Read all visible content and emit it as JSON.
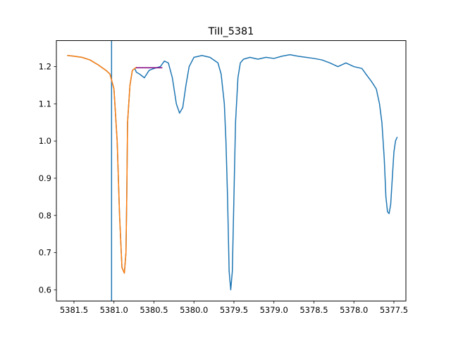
{
  "chart_data": {
    "type": "line",
    "title": "TiII_5381",
    "xlabel": "",
    "ylabel": "",
    "x_inverted": true,
    "xlim": [
      5381.72,
      5377.35
    ],
    "ylim": [
      0.57,
      1.27
    ],
    "x_ticks": [
      {
        "value": 5381.5,
        "label": "5381.5"
      },
      {
        "value": 5381.0,
        "label": "5381.0"
      },
      {
        "value": 5380.5,
        "label": "5380.5"
      },
      {
        "value": 5380.0,
        "label": "5380.0"
      },
      {
        "value": 5379.5,
        "label": "5379.5"
      },
      {
        "value": 5379.0,
        "label": "5379.0"
      },
      {
        "value": 5378.5,
        "label": "5378.5"
      },
      {
        "value": 5378.0,
        "label": "5378.0"
      },
      {
        "value": 5377.5,
        "label": "5377.5"
      }
    ],
    "y_ticks": [
      {
        "value": 0.6,
        "label": "0.6"
      },
      {
        "value": 0.7,
        "label": "0.7"
      },
      {
        "value": 0.8,
        "label": "0.8"
      },
      {
        "value": 0.9,
        "label": "0.9"
      },
      {
        "value": 1.0,
        "label": "1.0"
      },
      {
        "value": 1.1,
        "label": "1.1"
      },
      {
        "value": 1.2,
        "label": "1.2"
      }
    ],
    "grid": false,
    "series": [
      {
        "color": "#1f77b4",
        "x": [
          5381.58,
          5381.5,
          5381.4,
          5381.3,
          5381.2,
          5381.1,
          5381.05,
          5381.0,
          5380.96,
          5380.93,
          5380.9,
          5380.87,
          5380.85,
          5380.84,
          5380.83,
          5380.8,
          5380.77,
          5380.74,
          5380.72,
          5380.68,
          5380.62,
          5380.56,
          5380.5,
          5380.42,
          5380.37,
          5380.32,
          5380.27,
          5380.22,
          5380.18,
          5380.14,
          5380.1,
          5380.06,
          5380.0,
          5379.9,
          5379.8,
          5379.7,
          5379.66,
          5379.62,
          5379.6,
          5379.58,
          5379.56,
          5379.54,
          5379.52,
          5379.5,
          5379.48,
          5379.45,
          5379.42,
          5379.38,
          5379.3,
          5379.2,
          5379.1,
          5379.0,
          5378.9,
          5378.8,
          5378.7,
          5378.6,
          5378.5,
          5378.4,
          5378.3,
          5378.2,
          5378.1,
          5378.0,
          5377.9,
          5377.85,
          5377.78,
          5377.72,
          5377.68,
          5377.65,
          5377.62,
          5377.6,
          5377.58,
          5377.56,
          5377.54,
          5377.52,
          5377.5,
          5377.48,
          5377.46
        ],
        "y": [
          1.23,
          1.228,
          1.225,
          1.218,
          1.205,
          1.19,
          1.18,
          1.14,
          1.0,
          0.8,
          0.66,
          0.645,
          0.7,
          0.85,
          1.05,
          1.15,
          1.19,
          1.195,
          1.185,
          1.18,
          1.17,
          1.19,
          1.195,
          1.2,
          1.215,
          1.21,
          1.17,
          1.1,
          1.075,
          1.09,
          1.15,
          1.2,
          1.225,
          1.23,
          1.225,
          1.21,
          1.18,
          1.1,
          1.0,
          0.85,
          0.65,
          0.6,
          0.65,
          0.85,
          1.05,
          1.17,
          1.21,
          1.22,
          1.225,
          1.22,
          1.225,
          1.222,
          1.228,
          1.232,
          1.228,
          1.225,
          1.222,
          1.218,
          1.21,
          1.2,
          1.21,
          1.2,
          1.195,
          1.18,
          1.16,
          1.14,
          1.1,
          1.05,
          0.95,
          0.85,
          0.81,
          0.805,
          0.83,
          0.9,
          0.97,
          1.0,
          1.01
        ]
      },
      {
        "color": "#ff7f0e",
        "x": [
          5381.58,
          5381.5,
          5381.4,
          5381.3,
          5381.2,
          5381.1,
          5381.05,
          5381.0,
          5380.96,
          5380.93,
          5380.9,
          5380.87,
          5380.85,
          5380.84,
          5380.83,
          5380.8,
          5380.77,
          5380.74,
          5380.72
        ],
        "y": [
          1.23,
          1.228,
          1.225,
          1.218,
          1.205,
          1.19,
          1.18,
          1.14,
          1.0,
          0.8,
          0.66,
          0.645,
          0.7,
          0.85,
          1.05,
          1.15,
          1.19,
          1.195,
          1.198
        ]
      },
      {
        "color": "#800080",
        "x": [
          5380.72,
          5380.4
        ],
        "y": [
          1.197,
          1.197
        ]
      }
    ],
    "vertical_lines": [
      {
        "x": 5381.03,
        "color": "#1f77b4"
      }
    ]
  }
}
